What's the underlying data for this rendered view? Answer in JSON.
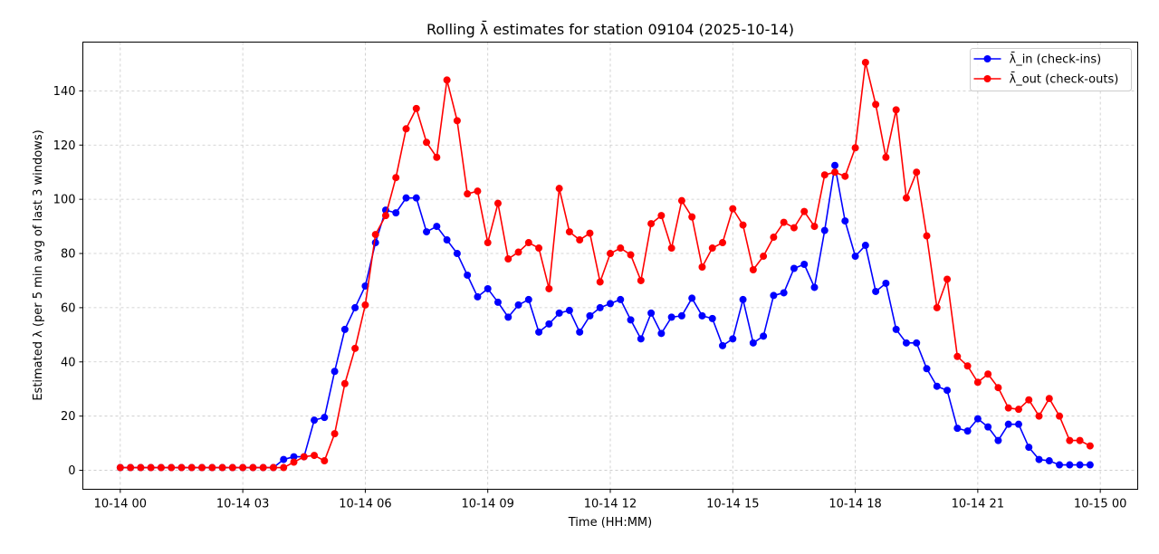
{
  "chart_data": {
    "type": "line",
    "title": "Rolling λ̄ estimates for station 09104 (2025-10-14)",
    "xlabel": "Time (HH:MM)",
    "ylabel": "Estimated λ (per 5 min avg of last 3 windows)",
    "x_start": "2025-10-14 00:00",
    "x_step_minutes": 15,
    "xlim": [
      "2025-10-13 23:05",
      "2025-10-15 00:55"
    ],
    "ylim": [
      -7,
      158
    ],
    "x_ticks": [
      {
        "value": "2025-10-14 00:00",
        "label": "10-14 00"
      },
      {
        "value": "2025-10-14 03:00",
        "label": "10-14 03"
      },
      {
        "value": "2025-10-14 06:00",
        "label": "10-14 06"
      },
      {
        "value": "2025-10-14 09:00",
        "label": "10-14 09"
      },
      {
        "value": "2025-10-14 12:00",
        "label": "10-14 12"
      },
      {
        "value": "2025-10-14 15:00",
        "label": "10-14 15"
      },
      {
        "value": "2025-10-14 18:00",
        "label": "10-14 18"
      },
      {
        "value": "2025-10-14 21:00",
        "label": "10-14 21"
      },
      {
        "value": "2025-10-15 00:00",
        "label": "10-15 00"
      }
    ],
    "y_ticks": [
      0,
      20,
      40,
      60,
      80,
      100,
      120,
      140
    ],
    "grid": true,
    "legend_position": "top-right",
    "series": [
      {
        "name": "λ̄_in (check-ins)",
        "color": "#0000ff",
        "marker": "circle",
        "values": [
          1,
          1,
          1,
          1,
          1,
          1,
          1,
          1,
          1,
          1,
          1,
          1,
          1,
          1,
          1,
          1,
          4,
          5,
          5,
          18.5,
          19.5,
          36.5,
          52,
          60,
          68,
          84,
          96,
          95,
          100.5,
          100.5,
          88,
          90,
          85,
          80,
          72,
          64,
          67,
          62,
          56.5,
          61,
          63,
          51,
          54,
          58,
          59,
          51,
          57,
          60,
          61.5,
          63,
          55.5,
          48.5,
          58,
          50.5,
          56.5,
          57,
          63.5,
          57,
          56,
          46,
          48.5,
          63,
          47,
          49.5,
          64.5,
          65.5,
          74.5,
          76,
          67.5,
          88.5,
          112.5,
          92,
          79,
          83,
          66,
          69,
          52,
          47,
          47,
          37.5,
          31,
          29.5,
          15.5,
          14.5,
          19,
          16,
          11,
          17,
          17,
          8.5,
          4,
          3.5,
          2,
          2,
          2,
          2
        ]
      },
      {
        "name": "λ̄_out (check-outs)",
        "color": "#ff0000",
        "marker": "circle",
        "values": [
          1,
          1,
          1,
          1,
          1,
          1,
          1,
          1,
          1,
          1,
          1,
          1,
          1,
          1,
          1,
          1,
          1,
          3,
          5,
          5.5,
          3.5,
          13.5,
          32,
          45,
          61,
          87,
          94,
          108,
          126,
          133.5,
          121,
          115.5,
          144,
          129,
          102,
          103,
          84,
          98.5,
          78,
          80.5,
          84,
          82,
          67,
          104,
          88,
          85,
          87.5,
          69.5,
          80,
          82,
          79.5,
          70,
          91,
          94,
          82,
          99.5,
          93.5,
          75,
          82,
          84,
          96.5,
          90.5,
          74,
          79,
          86,
          91.5,
          89.5,
          95.5,
          90,
          109,
          110,
          108.5,
          119,
          150.5,
          135,
          115.5,
          133,
          100.5,
          110,
          86.5,
          60,
          70.5,
          42,
          38.5,
          32.5,
          35.5,
          30.5,
          23,
          22.5,
          26,
          20,
          26.5,
          20,
          11,
          11,
          9
        ]
      }
    ]
  }
}
